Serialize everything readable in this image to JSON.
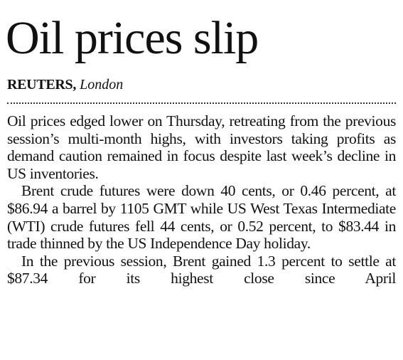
{
  "headline": "Oil prices slip",
  "byline": {
    "agency": "REUTERS,",
    "location": "London"
  },
  "paragraphs": [
    "Oil prices edged lower on Thursday, retreating from the previous session’s multi-month highs, with investors taking profits as demand caution remained in focus despite last week’s decline in US inventories.",
    "Brent crude futures were down 40 cents, or 0.46 percent, at $86.94 a barrel by 1105 GMT while US West Texas Intermediate (WTI) crude futures fell 44 cents, or 0.52 percent, to $83.44 in trade thinned by the US Independence Day holiday.",
    "In the previous session, Brent gained 1.3 percent to settle at $87.34 for its highest close since April"
  ]
}
